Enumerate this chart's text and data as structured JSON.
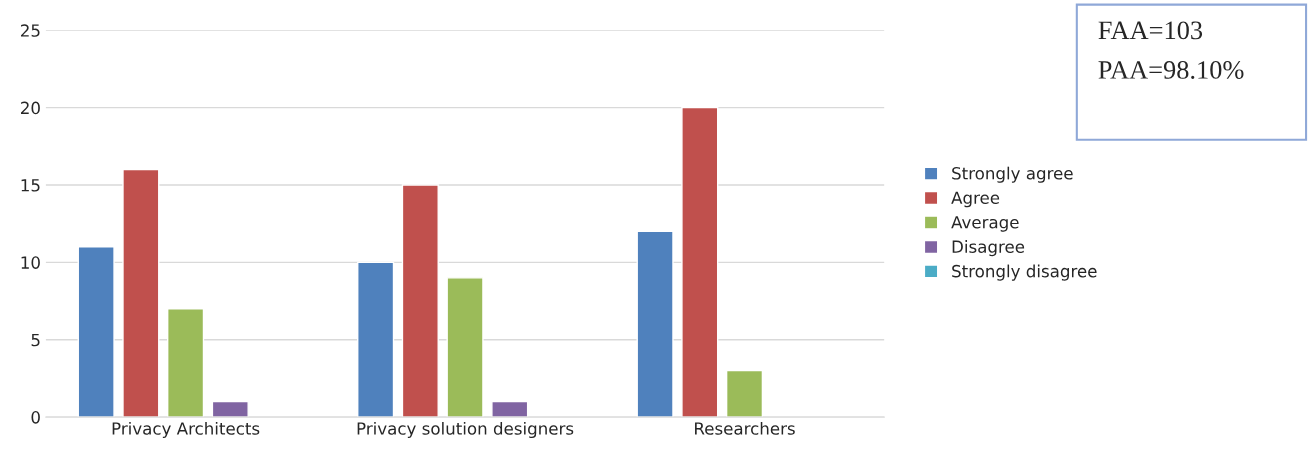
{
  "chart_data": {
    "type": "bar",
    "categories": [
      "Privacy Architects",
      "Privacy solution designers",
      "Researchers"
    ],
    "series": [
      {
        "name": "Strongly agree",
        "color": "#4f81bd",
        "values": [
          11,
          10,
          12
        ]
      },
      {
        "name": "Agree",
        "color": "#c0504d",
        "values": [
          16,
          15,
          20
        ]
      },
      {
        "name": "Average",
        "color": "#9bbb59",
        "values": [
          7,
          9,
          3
        ]
      },
      {
        "name": "Disagree",
        "color": "#8064a2",
        "values": [
          1,
          1,
          null
        ]
      },
      {
        "name": "Strongly disagree",
        "color": "#4bacc6",
        "values": [
          null,
          null,
          null
        ]
      }
    ],
    "ylim": [
      0,
      25
    ],
    "yticks": [
      0,
      5,
      10,
      15,
      20,
      25
    ],
    "grid": "y",
    "legend": "right",
    "annotations": [
      "FAA=103",
      "PAA=98.10%"
    ]
  }
}
